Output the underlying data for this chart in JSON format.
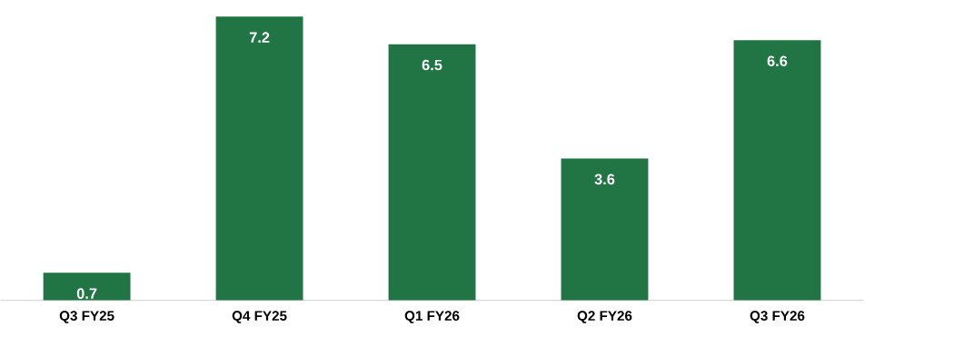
{
  "chart_data": {
    "type": "bar",
    "categories": [
      "Q3 FY25",
      "Q4 FY25",
      "Q1 FY26",
      "Q2 FY26",
      "Q3 FY26"
    ],
    "values": [
      0.7,
      7.2,
      6.5,
      3.6,
      6.6
    ],
    "color": "#217443",
    "data_labels": true
  }
}
